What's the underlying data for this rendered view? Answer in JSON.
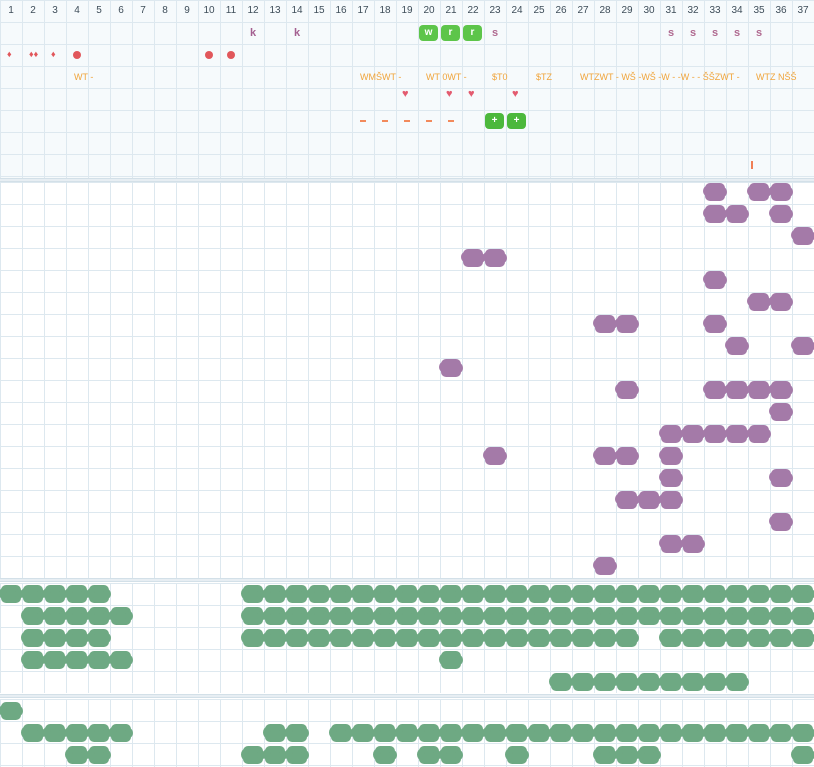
{
  "columns": [
    "1",
    "2",
    "3",
    "4",
    "5",
    "6",
    "7",
    "8",
    "9",
    "10",
    "11",
    "12",
    "13",
    "14",
    "15",
    "16",
    "17",
    "18",
    "19",
    "20",
    "21",
    "22",
    "23",
    "24",
    "25",
    "26",
    "27",
    "28",
    "29",
    "30",
    "31",
    "32",
    "33",
    "34",
    "35",
    "36",
    "37"
  ],
  "top_letters": [
    {
      "col": 12,
      "text": "k"
    },
    {
      "col": 14,
      "text": "k"
    },
    {
      "col": 23,
      "text": "s"
    },
    {
      "col": 31,
      "text": "s"
    },
    {
      "col": 32,
      "text": "s"
    },
    {
      "col": 33,
      "text": "s"
    },
    {
      "col": 34,
      "text": "s"
    },
    {
      "col": 35,
      "text": "s"
    }
  ],
  "chips": [
    {
      "col": 20,
      "row": 1,
      "text": "w"
    },
    {
      "col": 21,
      "row": 1,
      "text": "r"
    },
    {
      "col": 22,
      "row": 1,
      "text": "r"
    },
    {
      "col": 23,
      "row": 5,
      "text": "+"
    },
    {
      "col": 24,
      "row": 5,
      "text": "+"
    }
  ],
  "drops": [
    {
      "col": 1,
      "text": "♦"
    },
    {
      "col": 2,
      "text": "♦♦"
    },
    {
      "col": 3,
      "text": "♦"
    }
  ],
  "dots": [
    4,
    10,
    11
  ],
  "annotations": [
    {
      "col": 4,
      "text": "WT -"
    },
    {
      "col": 17,
      "text": "WMŠWT -"
    },
    {
      "col": 20,
      "text": "WT 0WT -"
    },
    {
      "col": 23,
      "text": "$T0"
    },
    {
      "col": 25,
      "text": "$TZ"
    },
    {
      "col": 27,
      "text": "WTZWT - WŠ -WŠ -W -  -W -  - ŠŠZWT -"
    },
    {
      "col": 35,
      "text": "WTZ NŠŠ"
    }
  ],
  "hearts": [
    19,
    21,
    22,
    24
  ],
  "dashes": [
    17,
    18,
    19,
    20,
    21
  ],
  "pins": [
    35
  ],
  "purple_cells": [
    [
      33,
      1
    ],
    [
      35,
      1
    ],
    [
      36,
      1
    ],
    [
      33,
      2
    ],
    [
      34,
      2
    ],
    [
      36,
      2
    ],
    [
      37,
      3
    ],
    [
      22,
      4
    ],
    [
      23,
      4
    ],
    [
      33,
      5
    ],
    [
      35,
      6
    ],
    [
      36,
      6
    ],
    [
      28,
      7
    ],
    [
      29,
      7
    ],
    [
      33,
      7
    ],
    [
      34,
      8
    ],
    [
      37,
      8
    ],
    [
      21,
      9
    ],
    [
      29,
      10
    ],
    [
      33,
      10
    ],
    [
      34,
      10
    ],
    [
      35,
      10
    ],
    [
      36,
      10
    ],
    [
      36,
      11
    ],
    [
      31,
      12
    ],
    [
      32,
      12
    ],
    [
      33,
      12
    ],
    [
      34,
      12
    ],
    [
      35,
      12
    ],
    [
      23,
      13
    ],
    [
      28,
      13
    ],
    [
      29,
      13
    ],
    [
      31,
      13
    ],
    [
      31,
      14
    ],
    [
      36,
      14
    ],
    [
      29,
      15
    ],
    [
      30,
      15
    ],
    [
      31,
      15
    ],
    [
      36,
      16
    ],
    [
      31,
      17
    ],
    [
      32,
      17
    ],
    [
      28,
      18
    ]
  ],
  "green_rows_b1": [
    [
      1,
      2,
      3,
      4,
      5,
      12,
      13,
      14,
      15,
      16,
      17,
      18,
      19,
      20,
      21,
      22,
      23,
      24,
      25,
      26,
      27,
      28,
      29,
      30,
      31,
      32,
      33,
      34,
      35,
      36,
      37
    ],
    [
      2,
      3,
      4,
      5,
      6,
      12,
      13,
      14,
      15,
      16,
      17,
      18,
      19,
      20,
      21,
      22,
      23,
      24,
      25,
      26,
      27,
      28,
      29,
      30,
      31,
      32,
      33,
      34,
      35,
      36,
      37
    ],
    [
      2,
      3,
      4,
      5,
      12,
      13,
      14,
      15,
      16,
      17,
      18,
      19,
      20,
      21,
      22,
      23,
      24,
      25,
      26,
      27,
      28,
      29,
      31,
      32,
      33,
      34,
      35,
      36,
      37
    ],
    [
      2,
      3,
      4,
      5,
      6,
      21
    ],
    [
      26,
      27,
      28,
      29,
      30,
      31,
      32,
      33,
      34
    ]
  ],
  "green_rows_b2": [
    [
      1
    ],
    [
      2,
      3,
      4,
      5,
      6,
      13,
      14,
      16,
      17,
      18,
      19,
      20,
      21,
      22,
      23,
      24,
      25,
      26,
      27,
      28,
      29,
      30,
      31,
      32,
      33,
      34,
      35,
      36,
      37
    ],
    [
      4,
      5,
      12,
      13,
      14,
      18,
      20,
      21,
      24,
      28,
      29,
      30,
      37
    ]
  ]
}
